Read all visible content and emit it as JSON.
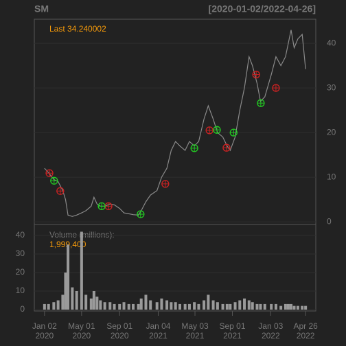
{
  "chart_data": [
    {
      "type": "line",
      "title": "SM",
      "subtitle": "[2020-01-02/2022-04-26]",
      "annotation": "Last 34.240002",
      "x": [
        "2020-01-02",
        "2020-01-15",
        "2020-02-01",
        "2020-02-15",
        "2020-03-01",
        "2020-03-10",
        "2020-03-18",
        "2020-04-01",
        "2020-04-15",
        "2020-05-01",
        "2020-05-15",
        "2020-06-01",
        "2020-06-10",
        "2020-06-20",
        "2020-07-01",
        "2020-07-15",
        "2020-08-01",
        "2020-08-15",
        "2020-09-01",
        "2020-09-15",
        "2020-10-01",
        "2020-10-15",
        "2020-11-01",
        "2020-11-10",
        "2020-11-25",
        "2020-12-10",
        "2020-12-31",
        "2021-01-15",
        "2021-02-01",
        "2021-02-15",
        "2021-03-01",
        "2021-03-15",
        "2021-04-01",
        "2021-04-15",
        "2021-05-01",
        "2021-05-15",
        "2021-06-01",
        "2021-06-15",
        "2021-07-01",
        "2021-07-15",
        "2021-08-01",
        "2021-08-15",
        "2021-08-25",
        "2021-09-10",
        "2021-09-25",
        "2021-10-10",
        "2021-10-25",
        "2021-11-05",
        "2021-11-20",
        "2021-12-01",
        "2021-12-15",
        "2022-01-05",
        "2022-01-20",
        "2022-02-05",
        "2022-02-20",
        "2022-03-01",
        "2022-03-10",
        "2022-03-20",
        "2022-04-01",
        "2022-04-15",
        "2022-04-26"
      ],
      "values": [
        12,
        11,
        9.5,
        9,
        7,
        5,
        1.5,
        1.2,
        1.5,
        2,
        2.5,
        3.5,
        5.5,
        4,
        3.5,
        3.5,
        4,
        3.8,
        3,
        2,
        1.8,
        1.6,
        1.5,
        2.5,
        4.5,
        6,
        7,
        10,
        12,
        16,
        18,
        17,
        16,
        18,
        17,
        18,
        23,
        26,
        23,
        20,
        19,
        17,
        16,
        19,
        25,
        30,
        37,
        35,
        31,
        27,
        28,
        33,
        37,
        35,
        37,
        40,
        43,
        39,
        41,
        42,
        34.240002
      ],
      "color": "#8a8a8a",
      "buy_signals": {
        "color": "#22cc22",
        "x": [
          "2020-02-02",
          "2020-07-05",
          "2020-11-08",
          "2021-05-01",
          "2021-07-13",
          "2021-09-05",
          "2021-12-02"
        ],
        "values": [
          9.2,
          3.5,
          1.7,
          16.5,
          20.6,
          20,
          26.6
        ]
      },
      "sell_signals": {
        "color": "#cc2222",
        "x": [
          "2020-01-18",
          "2020-02-22",
          "2020-07-27",
          "2021-01-27",
          "2021-06-19",
          "2021-08-13",
          "2021-11-17",
          "2022-01-20"
        ],
        "values": [
          10.9,
          6.9,
          3.5,
          8.5,
          20.5,
          16.6,
          33,
          30
        ]
      },
      "xlim": [
        "2019-11-30",
        "2022-05-29"
      ],
      "xticks": [
        {
          "value": "2020-01-02",
          "label": "Jan 02\n2020"
        },
        {
          "value": "2020-05-01",
          "label": "May 01\n2020"
        },
        {
          "value": "2020-09-01",
          "label": "Sep 01\n2020"
        },
        {
          "value": "2021-01-04",
          "label": "Jan 04\n2021"
        },
        {
          "value": "2021-05-03",
          "label": "May 03\n2021"
        },
        {
          "value": "2021-09-01",
          "label": "Sep 01\n2021"
        },
        {
          "value": "2022-01-03",
          "label": "Jan 03\n2022"
        },
        {
          "value": "2022-04-26",
          "label": "Apr 26\n2022"
        }
      ],
      "ylim": [
        -0.6,
        45.4
      ],
      "yticks": [
        0,
        10,
        20,
        30,
        40
      ],
      "grid": true
    },
    {
      "type": "bar",
      "title": "Volume (millions):",
      "annotation": "1,999,400",
      "x": [
        "2020-01-02",
        "2020-01-15",
        "2020-02-01",
        "2020-02-15",
        "2020-03-01",
        "2020-03-10",
        "2020-03-18",
        "2020-04-01",
        "2020-04-15",
        "2020-05-01",
        "2020-05-15",
        "2020-06-01",
        "2020-06-10",
        "2020-06-20",
        "2020-07-01",
        "2020-07-15",
        "2020-08-01",
        "2020-08-15",
        "2020-09-01",
        "2020-09-15",
        "2020-10-01",
        "2020-10-15",
        "2020-11-01",
        "2020-11-10",
        "2020-11-25",
        "2020-12-10",
        "2020-12-31",
        "2021-01-15",
        "2021-02-01",
        "2021-02-15",
        "2021-03-01",
        "2021-03-15",
        "2021-04-01",
        "2021-04-15",
        "2021-05-01",
        "2021-05-15",
        "2021-06-01",
        "2021-06-15",
        "2021-07-01",
        "2021-07-15",
        "2021-08-01",
        "2021-08-15",
        "2021-08-25",
        "2021-09-10",
        "2021-09-25",
        "2021-10-10",
        "2021-10-25",
        "2021-11-05",
        "2021-11-20",
        "2021-12-01",
        "2021-12-15",
        "2022-01-05",
        "2022-01-20",
        "2022-02-05",
        "2022-02-20",
        "2022-03-01",
        "2022-03-10",
        "2022-03-20",
        "2022-04-01",
        "2022-04-15",
        "2022-04-26"
      ],
      "values": [
        3,
        3,
        4,
        5,
        8,
        20,
        35,
        12,
        10,
        42,
        8,
        6,
        10,
        7,
        5,
        4,
        4,
        3,
        3,
        4,
        3,
        3,
        3,
        6,
        8,
        5,
        4,
        6,
        5,
        4,
        4,
        3,
        3,
        3,
        4,
        3,
        5,
        8,
        5,
        4,
        3,
        3,
        3,
        4,
        5,
        6,
        5,
        4,
        3,
        3,
        3,
        3,
        3,
        2,
        3,
        3,
        3,
        2,
        2,
        2,
        1.9994
      ],
      "color": "#9a9a9a",
      "ylim": [
        -0.74,
        45.9
      ],
      "yticks": [
        0,
        10,
        20,
        30,
        40
      ],
      "grid": true
    }
  ]
}
